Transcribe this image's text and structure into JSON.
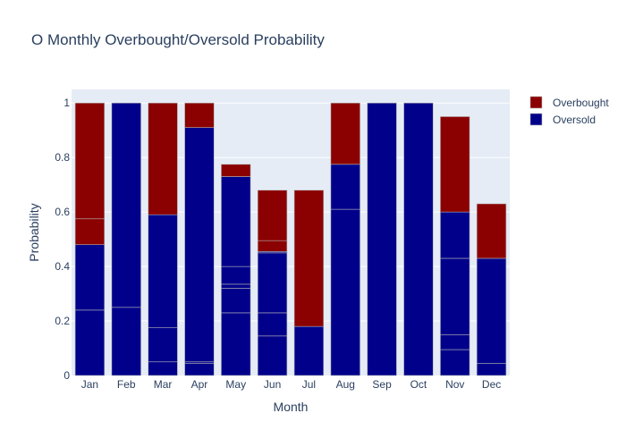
{
  "chart_data": {
    "type": "bar",
    "barmode": "stack",
    "title": "O Monthly Overbought/Oversold Probability",
    "xlabel": "Month",
    "ylabel": "Probability",
    "ylim": [
      0,
      1.05
    ],
    "yticks": [
      0,
      0.2,
      0.4,
      0.6,
      0.8,
      1
    ],
    "ytick_labels": [
      "0",
      "0.2",
      "0.4",
      "0.6",
      "0.8",
      "1"
    ],
    "grid": true,
    "legend_position": "top-right",
    "categories": [
      "Jan",
      "Feb",
      "Mar",
      "Apr",
      "May",
      "Jun",
      "Jul",
      "Aug",
      "Sep",
      "Oct",
      "Nov",
      "Dec"
    ],
    "series": [
      {
        "name": "Oversold",
        "color": "#00008b",
        "segments": [
          [
            0.24,
            0.24
          ],
          [
            0.25,
            0.75
          ],
          [
            0.05,
            0.125,
            0.415
          ],
          [
            0.045,
            0.005,
            0.86
          ],
          [
            0.23,
            0.09,
            0.015,
            0.065,
            0.33
          ],
          [
            0.145,
            0.085,
            0.22,
            0.005
          ],
          [
            0.18
          ],
          [
            0.61,
            0.165
          ],
          [
            1.0
          ],
          [
            1.0
          ],
          [
            0.095,
            0.055,
            0.28,
            0.17
          ],
          [
            0.045,
            0.385
          ]
        ]
      },
      {
        "name": "Overbought",
        "color": "#8b0000",
        "segments": [
          [
            0.095,
            0.425
          ],
          [],
          [
            0.41
          ],
          [
            0.09
          ],
          [
            0.045
          ],
          [
            0.04,
            0.185
          ],
          [
            0.5
          ],
          [
            0.225
          ],
          [],
          [],
          [
            0.35
          ],
          [
            0.2
          ]
        ]
      }
    ]
  }
}
